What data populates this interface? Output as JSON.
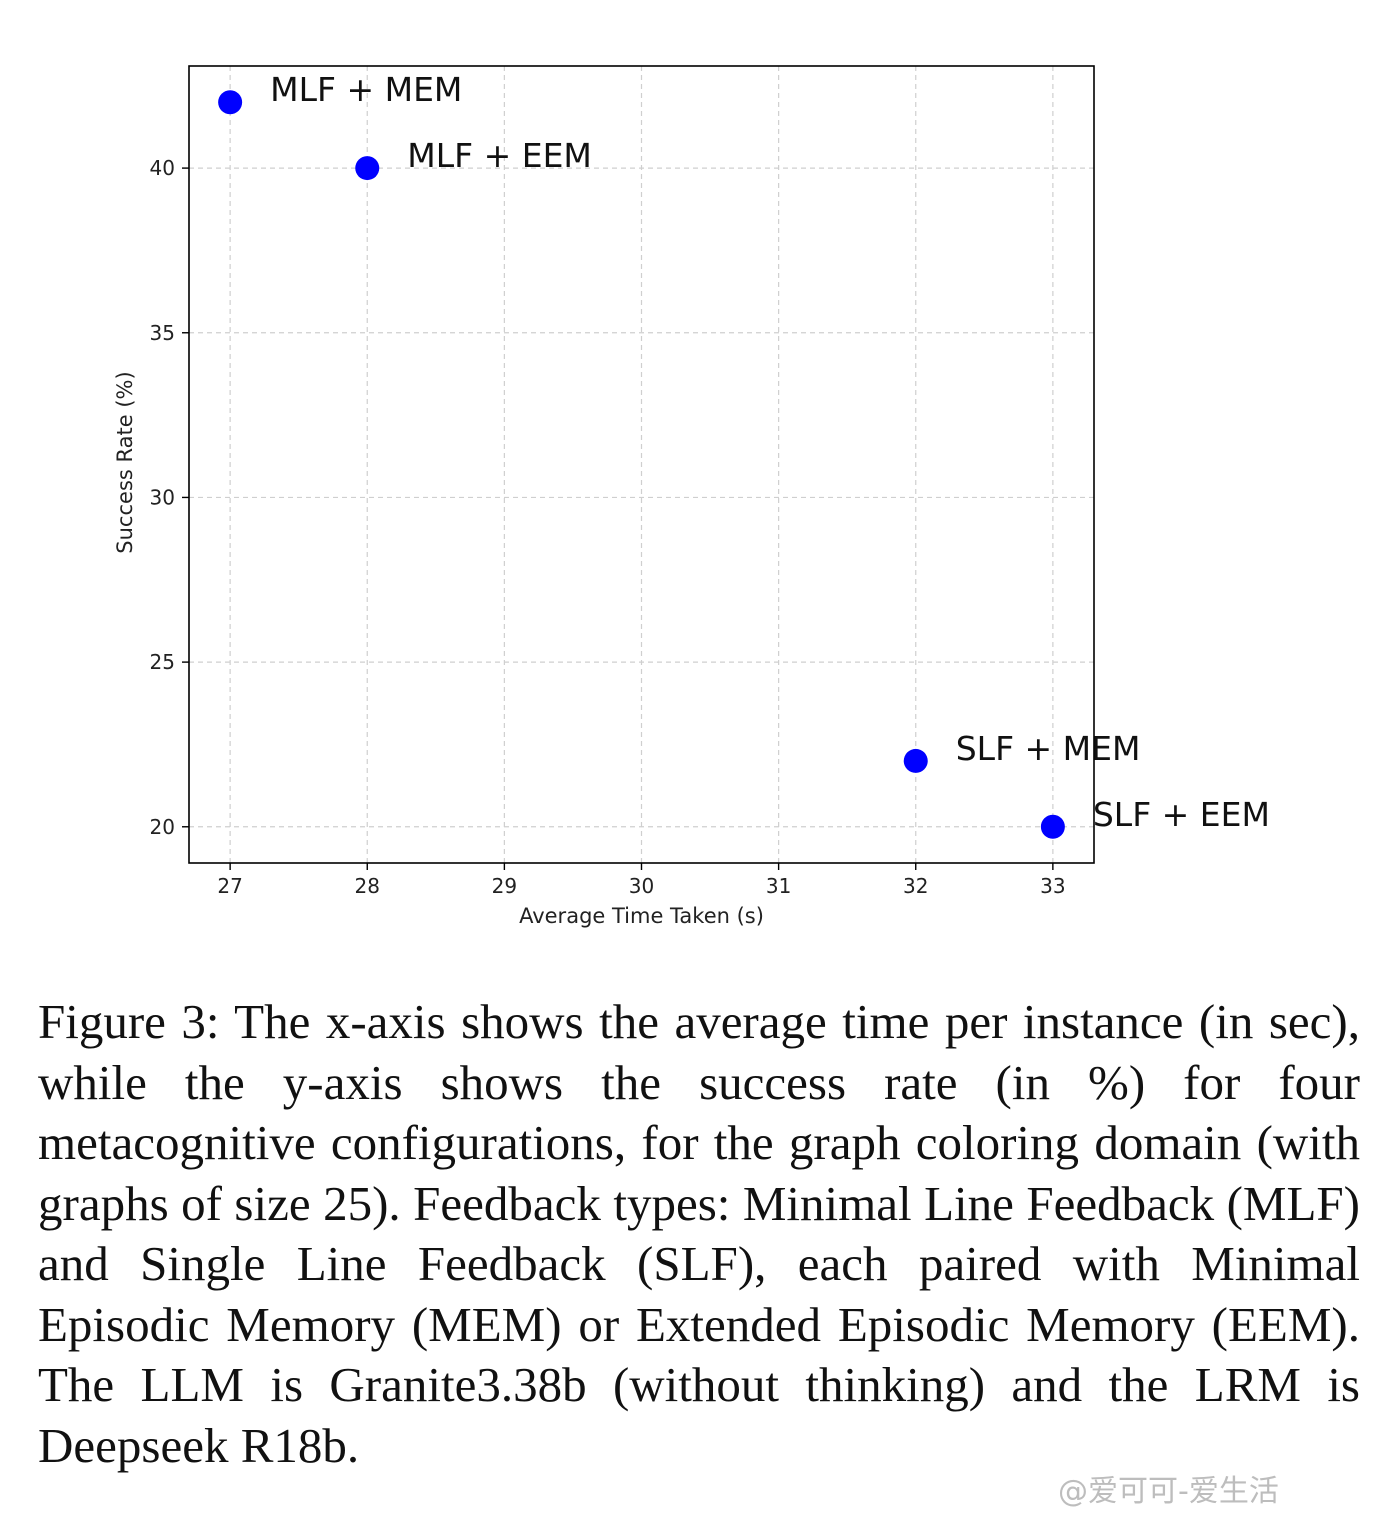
{
  "chart_data": {
    "type": "scatter",
    "title": "",
    "xlabel": "Average Time Taken (s)",
    "ylabel": "Success Rate (%)",
    "xlim": [
      26.7,
      33.3
    ],
    "ylim": [
      18.9,
      43.1
    ],
    "xticks": [
      27,
      28,
      29,
      30,
      31,
      32,
      33
    ],
    "yticks": [
      20,
      25,
      30,
      35,
      40
    ],
    "grid": true,
    "point_color": "#0000ff",
    "points": [
      {
        "x": 27,
        "y": 42,
        "label": "MLF + MEM"
      },
      {
        "x": 28,
        "y": 40,
        "label": "MLF + EEM"
      },
      {
        "x": 32,
        "y": 22,
        "label": "SLF + MEM"
      },
      {
        "x": 33,
        "y": 20,
        "label": "SLF + EEM"
      }
    ]
  },
  "caption": "Figure 3: The x-axis shows the average time per instance (in sec), while the y-axis shows the success rate (in %) for four metacognitive configurations, for the graph coloring domain (with graphs of size 25). Feedback types: Minimal Line Feedback (MLF) and Single Line Feedback (SLF), each paired with Minimal Episodic Memory (MEM) or Extended Episodic Memory (EEM). The LLM is Granite3.38b (without thinking) and the LRM is Deepseek R18b.",
  "watermark": "@爱可可-爱生活"
}
